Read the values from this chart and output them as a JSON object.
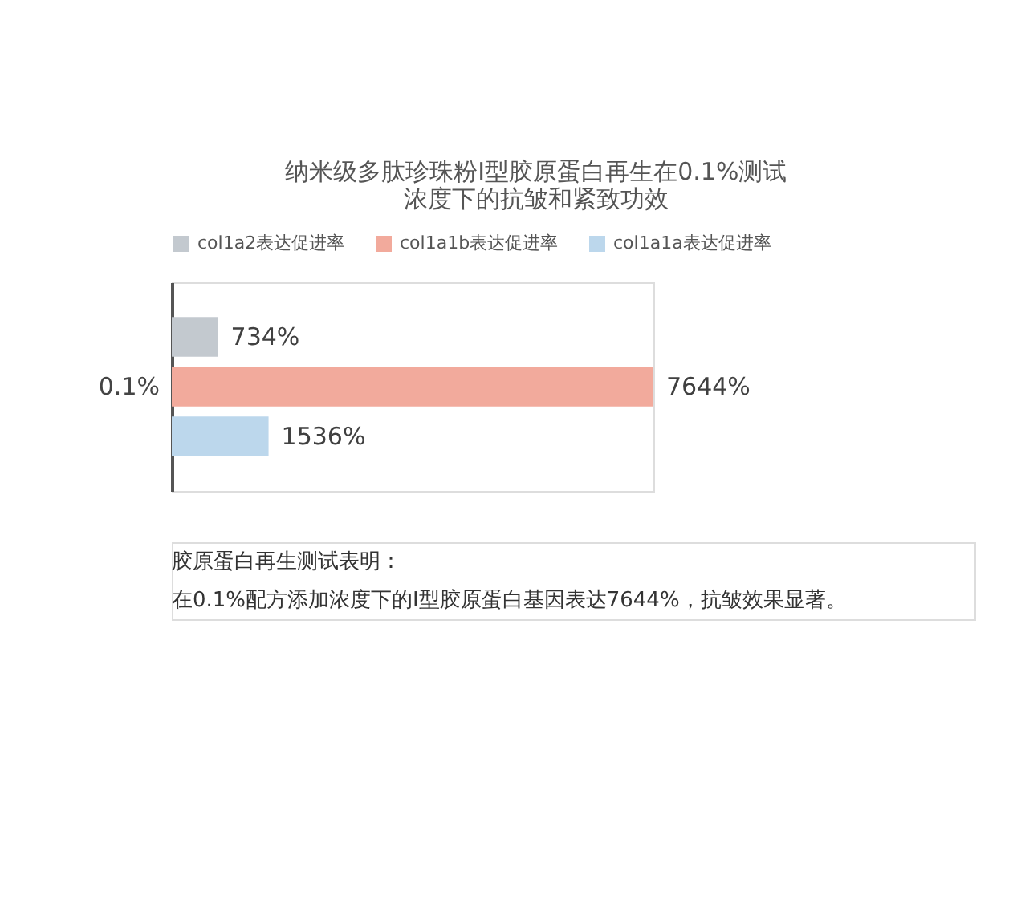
{
  "chart_data": {
    "type": "bar",
    "orientation": "horizontal",
    "title": [
      "纳米级多肽珍珠粉I型胶原蛋白再生在0.1%测试",
      "浓度下的抗皱和紧致功效"
    ],
    "categories": [
      "0.1%"
    ],
    "series": [
      {
        "name": "col1a2表达促进率",
        "color": "#c3c9cf",
        "values": [
          734
        ],
        "value_labels": [
          "734%"
        ]
      },
      {
        "name": "col1a1b表达促进率",
        "color": "#f2aa9c",
        "values": [
          7644
        ],
        "value_labels": [
          "7644%"
        ]
      },
      {
        "name": "col1a1a表达促进率",
        "color": "#bcd7ec",
        "values": [
          1536
        ],
        "value_labels": [
          "1536%"
        ]
      }
    ],
    "legend": "top",
    "annotations": [
      "胶原蛋白再生测试表明：",
      "在0.1%配方添加浓度下的I型胶原蛋白基因表达7644%，抗皱效果显著。"
    ]
  }
}
